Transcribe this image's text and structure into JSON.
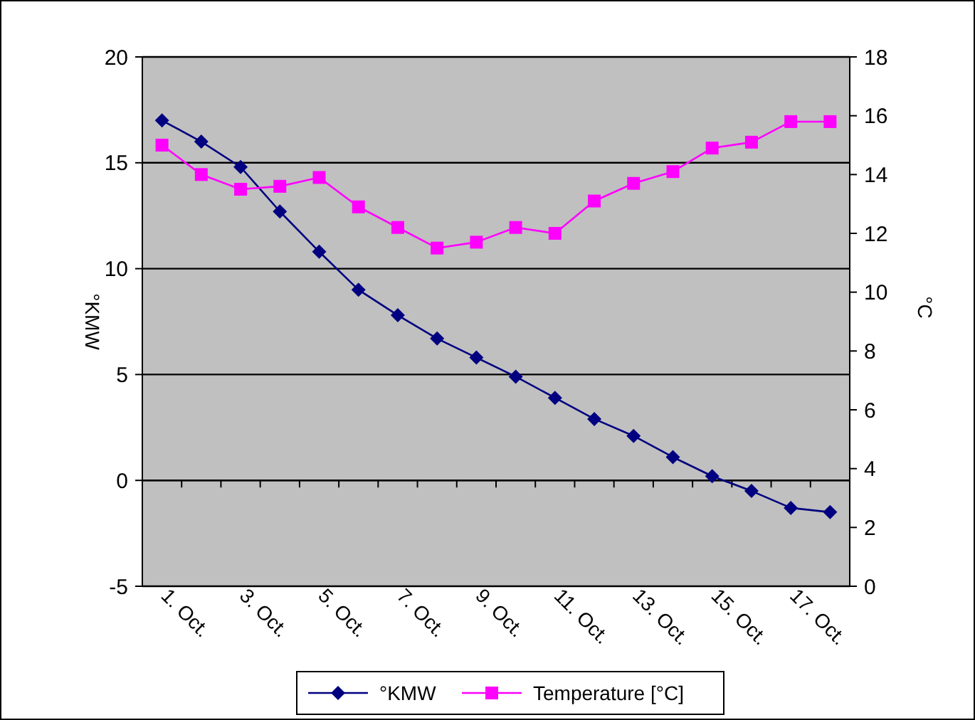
{
  "chart_data": {
    "type": "line",
    "categories": [
      "1. Oct.",
      null,
      "3. Oct.",
      null,
      "5. Oct.",
      null,
      "7. Oct.",
      null,
      "9. Oct.",
      null,
      "11. Oct.",
      null,
      "13. Oct.",
      null,
      "15. Oct.",
      null,
      "17. Oct.",
      null
    ],
    "ylabel": "°KMW",
    "y2label": "°C",
    "ylim": [
      -5,
      20
    ],
    "yticks": [
      -5,
      0,
      5,
      10,
      15,
      20
    ],
    "y2lim": [
      0,
      18
    ],
    "y2ticks": [
      0,
      2,
      4,
      6,
      8,
      10,
      12,
      14,
      16,
      18
    ],
    "grid": "y",
    "legend": "bottom",
    "line_style": "solid",
    "series": [
      {
        "name": "°KMW",
        "color": "#000080",
        "marker": "diamond",
        "values": [
          17,
          16,
          14.8,
          12.7,
          10.8,
          9,
          7.8,
          6.7,
          5.8,
          4.9,
          3.9,
          2.9,
          2.1,
          1.1,
          0.2,
          -0.5,
          -1.3,
          -1.5
        ]
      },
      {
        "name": "Temperature [°C]",
        "color": "#ff00ff",
        "marker": "square",
        "axis": "y2",
        "values": [
          15,
          14,
          13.5,
          13.6,
          13.9,
          12.9,
          12.2,
          11.5,
          11.7,
          12.2,
          12,
          13.1,
          13.7,
          14.1,
          14.9,
          15.1,
          15.8,
          15.8
        ]
      }
    ]
  }
}
